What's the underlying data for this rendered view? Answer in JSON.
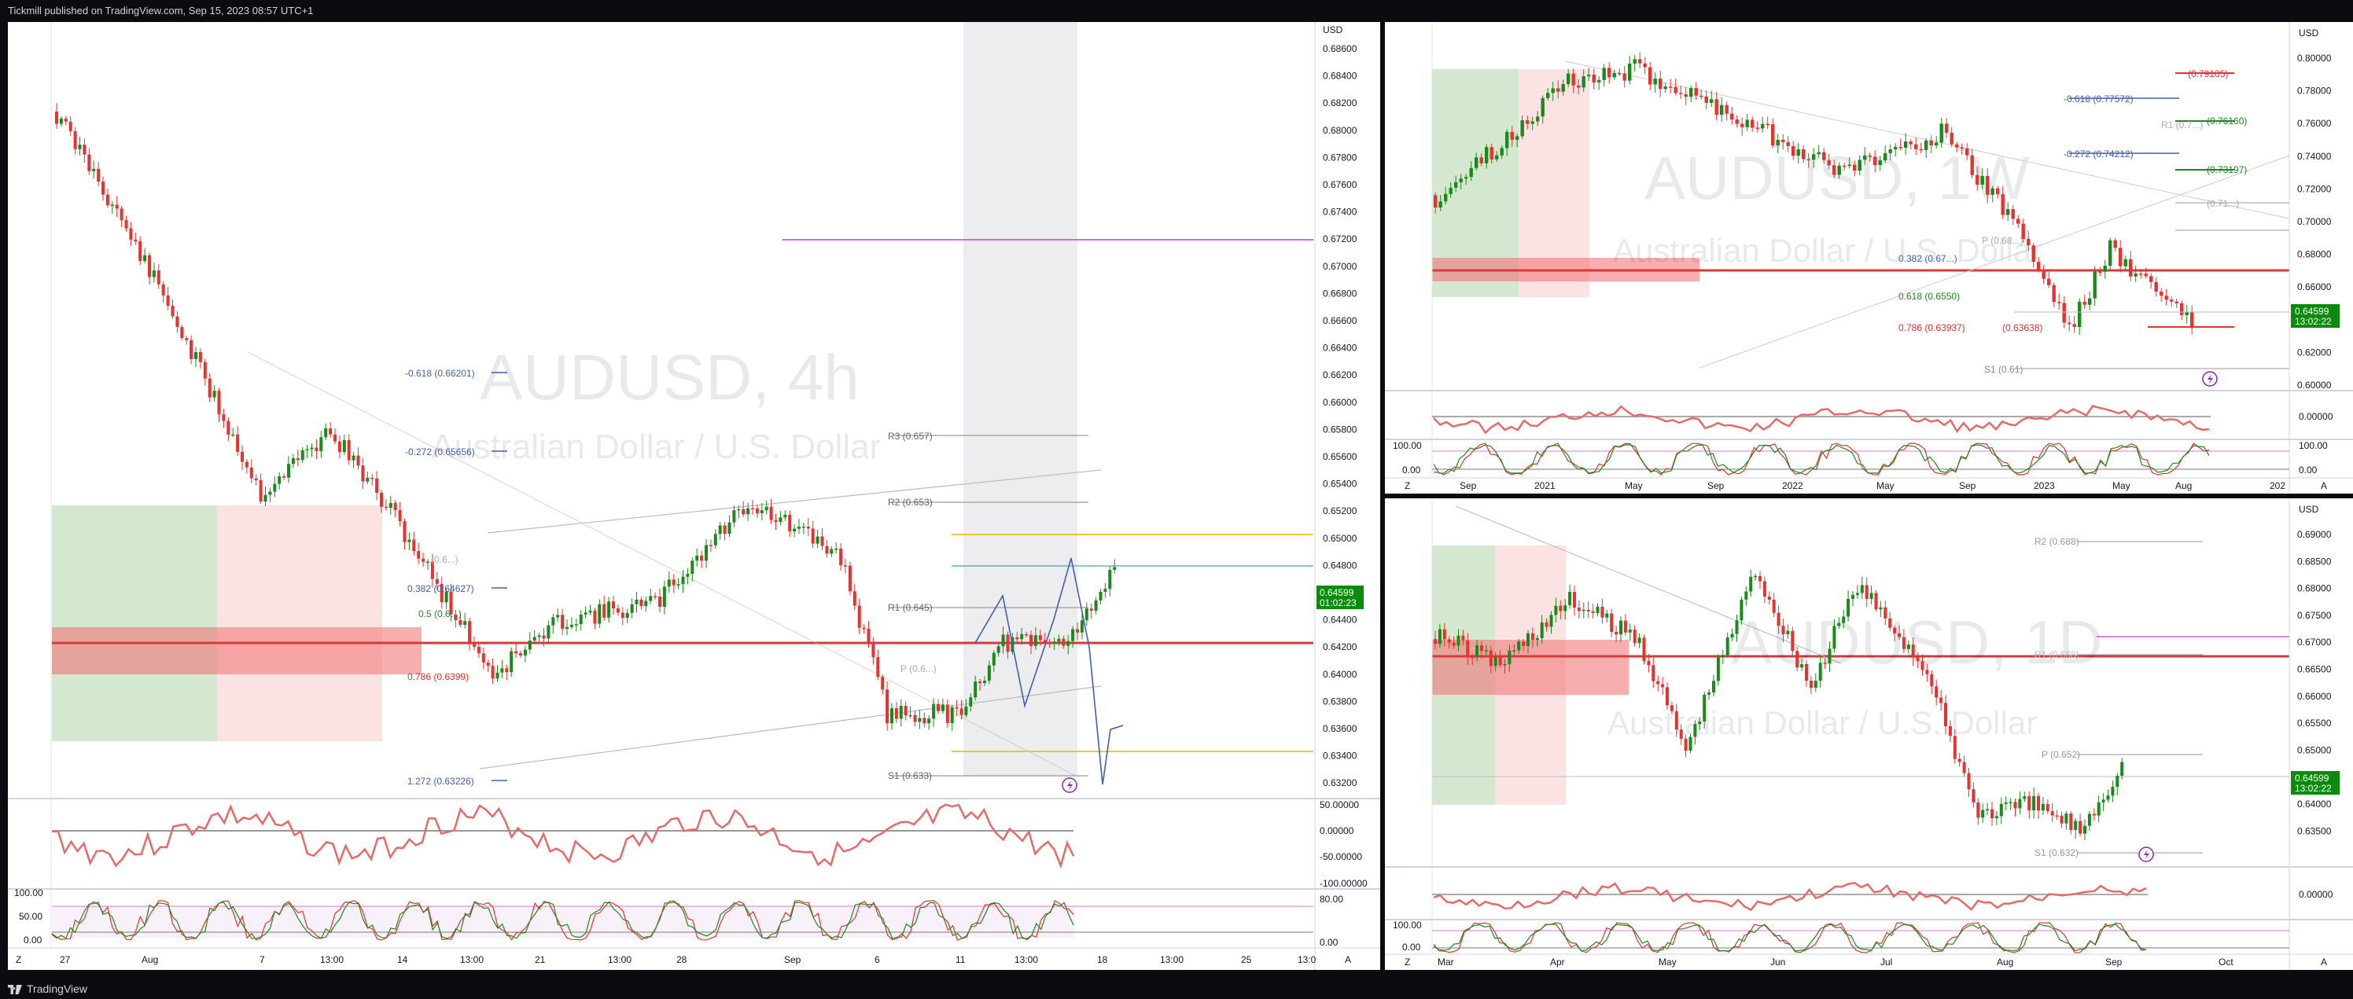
{
  "header": {
    "publisher": "Tickmill published on TradingView.com, Sep 15, 2023 08:57 UTC+1"
  },
  "footer": {
    "brand": "TradingView"
  },
  "colors": {
    "bull": "#1b8a1b",
    "bear": "#e8322f",
    "accent_blue": "#3f5fb0",
    "price_tag": "#0b8a0b"
  },
  "panel_4h": {
    "watermark_symbol": "AUDUSD, 4h",
    "watermark_name": "Australian Dollar / U.S. Dollar",
    "currency": "USD",
    "price_axis": [
      "0.68600",
      "0.68400",
      "0.68200",
      "0.68000",
      "0.67800",
      "0.67600",
      "0.67400",
      "0.67200",
      "0.67000",
      "0.66800",
      "0.66600",
      "0.66400",
      "0.66200",
      "0.66000",
      "0.65800",
      "0.65600",
      "0.65400",
      "0.65200",
      "0.65000",
      "0.64800",
      "0.64600",
      "0.64400",
      "0.64200",
      "0.64000",
      "0.63800",
      "0.63600",
      "0.63400",
      "0.63200"
    ],
    "last_price": "0.64599",
    "countdown": "01:02:23",
    "osc_axis": [
      "50.00000",
      "0.00000",
      "-50.00000",
      "-100.00000"
    ],
    "stoch_axis_right": [
      "80.00",
      "0.00"
    ],
    "stoch_axis_left": [
      "100.00",
      "50.00",
      "0.00"
    ],
    "time_axis": [
      "27",
      "Aug",
      "7",
      "13:00",
      "14",
      "13:00",
      "21",
      "13:00",
      "28",
      "Sep",
      "6",
      "11",
      "13:00",
      "18",
      "13:00",
      "25",
      "13:0"
    ],
    "fib_labels": [
      "-0.618 (0.66201)",
      "-0.272 (0.65656)",
      "0.382 (0.64627)",
      "0.5 (0.6...)",
      "0.786 (0.6399)",
      "1.272 (0.63226)",
      "(0.6...)"
    ],
    "pivot_labels": [
      "R3 (0.657)",
      "R2 (0.653)",
      "R1 (0.645)",
      "P (0.6...)",
      "S1 (0.633)"
    ],
    "scale_buttons": [
      "Z",
      "A"
    ]
  },
  "panel_1w": {
    "watermark_symbol": "AUDUSD, 1W",
    "watermark_name": "Australian Dollar / U.S. Dollar",
    "currency": "USD",
    "price_axis": [
      "0.80000",
      "0.78000",
      "0.76000",
      "0.74000",
      "0.72000",
      "0.70000",
      "0.68000",
      "0.66000",
      "0.64000",
      "0.62000",
      "0.60000"
    ],
    "last_price": "0.64599",
    "countdown": "13:02:22",
    "osc_axis": [
      "0.00000",
      "100.00",
      "0.00"
    ],
    "osc_left": [
      "100.00",
      "0.00"
    ],
    "time_axis": [
      "Sep",
      "2021",
      "May",
      "Sep",
      "2022",
      "May",
      "Sep",
      "2023",
      "May",
      "Aug",
      "202"
    ],
    "fib_labels": [
      "(0.79105)",
      "-0.618 (0.77572)",
      "(0.76160)",
      "-0.272 (0.74212)",
      "(0.73197)",
      "(0.71...)",
      "0.382 (0.67...)",
      "0.618 (0.6550)",
      "0.786 (0.63937)",
      "(0.63638)"
    ],
    "pivot_labels": [
      "R1 (0.7...)",
      "P (0.68...)",
      "S1 (0.61)"
    ],
    "scale_buttons": [
      "Z",
      "A"
    ]
  },
  "panel_1d": {
    "watermark_symbol": "AUDUSD, 1D",
    "watermark_name": "Australian Dollar / U.S. Dollar",
    "currency": "USD",
    "price_axis": [
      "0.69000",
      "0.68500",
      "0.68000",
      "0.67500",
      "0.67000",
      "0.66500",
      "0.66000",
      "0.65500",
      "0.65000",
      "0.64500",
      "0.64000",
      "0.63500"
    ],
    "last_price": "0.64599",
    "countdown": "13:02:22",
    "osc_axis": [
      "0.00000"
    ],
    "osc_left": [
      "100.00",
      "0.00"
    ],
    "time_axis": [
      "Mar",
      "Apr",
      "May",
      "Jun",
      "Jul",
      "Aug",
      "Sep",
      "Oct"
    ],
    "pivot_labels": [
      "R2 (0.688)",
      "R1 (0.668)",
      "P (0.652)",
      "S1 (0.632)"
    ],
    "scale_buttons": [
      "Z",
      "A"
    ]
  }
}
